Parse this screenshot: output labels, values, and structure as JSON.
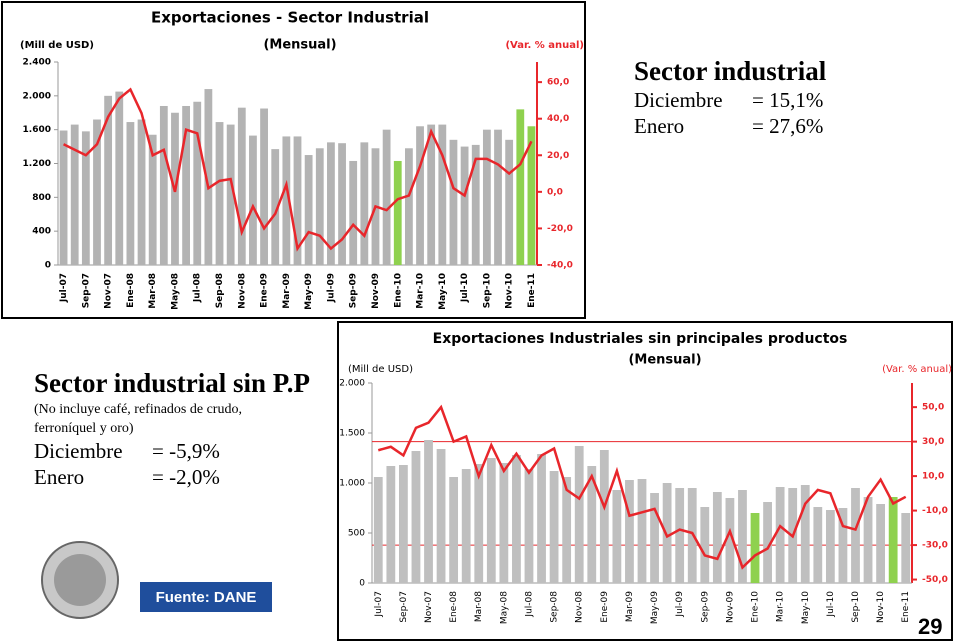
{
  "chart_data": [
    {
      "type": "bar_line",
      "title": "Exportaciones - Sector Industrial",
      "subtitle": "(Mensual)",
      "y_label": "(Mill de USD)",
      "y2_label": "(Var. % anual)",
      "categories": [
        "Jul-07",
        null,
        "Sep-07",
        null,
        "Nov-07",
        null,
        "Ene-08",
        null,
        "Mar-08",
        null,
        "May-08",
        null,
        "Jul-08",
        null,
        "Sep-08",
        null,
        "Nov-08",
        null,
        "Ene-09",
        null,
        "Mar-09",
        null,
        "May-09",
        null,
        "Jul-09",
        null,
        "Sep-09",
        null,
        "Nov-09",
        null,
        "Ene-10",
        null,
        "Mar-10",
        null,
        "May-10",
        null,
        "Jul-10",
        null,
        "Sep-10",
        null,
        "Nov-10",
        null,
        "Ene-11"
      ],
      "series": [
        {
          "values": [
            1590,
            1660,
            1580,
            1720,
            2000,
            2050,
            1690,
            1720,
            1540,
            1880,
            1800,
            1880,
            1930,
            2080,
            1690,
            1660,
            1860,
            1530,
            1850,
            1370,
            1520,
            1520,
            1300,
            1380,
            1450,
            1440,
            1230,
            1450,
            1380,
            1600,
            1230,
            1380,
            1640,
            1660,
            1660,
            1480,
            1400,
            1420,
            1600,
            1600,
            1480,
            1840,
            1640
          ],
          "colors": [
            "#b3b3b3",
            "#b3b3b3",
            "#b3b3b3",
            "#b3b3b3",
            "#b3b3b3",
            "#b3b3b3",
            "#b3b3b3",
            "#b3b3b3",
            "#b3b3b3",
            "#b3b3b3",
            "#b3b3b3",
            "#b3b3b3",
            "#b3b3b3",
            "#b3b3b3",
            "#b3b3b3",
            "#b3b3b3",
            "#b3b3b3",
            "#b3b3b3",
            "#b3b3b3",
            "#b3b3b3",
            "#b3b3b3",
            "#b3b3b3",
            "#b3b3b3",
            "#b3b3b3",
            "#b3b3b3",
            "#b3b3b3",
            "#b3b3b3",
            "#b3b3b3",
            "#b3b3b3",
            "#b3b3b3",
            "#8fd14f",
            "#b3b3b3",
            "#b3b3b3",
            "#b3b3b3",
            "#b3b3b3",
            "#b3b3b3",
            "#b3b3b3",
            "#b3b3b3",
            "#b3b3b3",
            "#b3b3b3",
            "#b3b3b3",
            "#8fd14f",
            "#8fd14f"
          ]
        },
        {
          "axis": "y2",
          "color": "#e8262b",
          "values": [
            26,
            23,
            20,
            26,
            41,
            51,
            56,
            43,
            20,
            23,
            0,
            34,
            32,
            2,
            6,
            7,
            -22,
            -8,
            -20,
            -12,
            4,
            -31,
            -22,
            -24,
            -31,
            -26,
            -18,
            -24,
            -8,
            -10,
            -4,
            -2,
            14,
            33,
            20,
            2,
            -2,
            18,
            18,
            15,
            10,
            15.1,
            27.6
          ]
        }
      ],
      "ylim": [
        0,
        2400
      ],
      "yticks": [
        0,
        400,
        800,
        {
          "value": 1200,
          "label": "1.200"
        },
        {
          "value": 1600,
          "label": "1.600"
        },
        {
          "value": 2000,
          "label": "2.000"
        },
        {
          "value": 2400,
          "label": "2.400"
        }
      ],
      "y2lim": [
        -40,
        71
      ],
      "y2ticks": [
        {
          "value": -40,
          "label": "-40,0"
        },
        {
          "value": -20,
          "label": "-20,0"
        },
        {
          "value": 0,
          "label": "0,0"
        },
        {
          "value": 20,
          "label": "20,0"
        },
        {
          "value": 40,
          "label": "40,0"
        },
        {
          "value": 60,
          "label": "60,0"
        }
      ],
      "y2_color": "#e8262b",
      "grid": false
    },
    {
      "type": "bar_line",
      "title": "Exportaciones Industriales sin principales productos",
      "subtitle": "(Mensual)",
      "y_label": "(Mill de USD)",
      "y2_label": "(Var. % anual)",
      "categories": [
        "Jul-07",
        null,
        "Sep-07",
        null,
        "Nov-07",
        null,
        "Ene-08",
        null,
        "Mar-08",
        null,
        "May-08",
        null,
        "Jul-08",
        null,
        "Sep-08",
        null,
        "Nov-08",
        null,
        "Ene-09",
        null,
        "Mar-09",
        null,
        "May-09",
        null,
        "Jul-09",
        null,
        "Sep-09",
        null,
        "Nov-09",
        null,
        "Ene-10",
        null,
        "Mar-10",
        null,
        "May-10",
        null,
        "Jul-10",
        null,
        "Sep-10",
        null,
        "Nov-10",
        null,
        "Ene-11"
      ],
      "series": [
        {
          "values": [
            1060,
            1170,
            1180,
            1320,
            1430,
            1340,
            1060,
            1140,
            1190,
            1250,
            1200,
            1280,
            1140,
            1290,
            1120,
            1060,
            1370,
            1170,
            1330,
            930,
            1030,
            1040,
            900,
            1000,
            950,
            950,
            760,
            910,
            850,
            930,
            700,
            810,
            960,
            950,
            980,
            760,
            730,
            750,
            950,
            860,
            790,
            860,
            700
          ],
          "colors": [
            "#bfbfbf",
            "#bfbfbf",
            "#bfbfbf",
            "#bfbfbf",
            "#bfbfbf",
            "#bfbfbf",
            "#bfbfbf",
            "#bfbfbf",
            "#bfbfbf",
            "#bfbfbf",
            "#bfbfbf",
            "#bfbfbf",
            "#bfbfbf",
            "#bfbfbf",
            "#bfbfbf",
            "#bfbfbf",
            "#bfbfbf",
            "#bfbfbf",
            "#bfbfbf",
            "#bfbfbf",
            "#bfbfbf",
            "#bfbfbf",
            "#bfbfbf",
            "#bfbfbf",
            "#bfbfbf",
            "#bfbfbf",
            "#bfbfbf",
            "#bfbfbf",
            "#bfbfbf",
            "#bfbfbf",
            "#8fd14f",
            "#bfbfbf",
            "#bfbfbf",
            "#bfbfbf",
            "#bfbfbf",
            "#bfbfbf",
            "#bfbfbf",
            "#bfbfbf",
            "#bfbfbf",
            "#bfbfbf",
            "#bfbfbf",
            "#8fd14f",
            "#bfbfbf"
          ]
        },
        {
          "axis": "y2",
          "color": "#e8262b",
          "values": [
            25,
            27,
            22,
            38,
            41,
            50,
            30,
            33,
            10,
            28,
            13,
            23,
            12,
            22,
            26,
            2,
            -3,
            10,
            -8,
            13,
            -13,
            -11,
            -9,
            -25,
            -21,
            -23,
            -36,
            -38,
            -22,
            -43,
            -36,
            -32,
            -19,
            -25,
            -6,
            2,
            0,
            -19,
            -21,
            -2,
            8,
            -5.9,
            -2.0
          ]
        }
      ],
      "ylim": [
        0,
        2000
      ],
      "yticks": [
        0,
        500,
        {
          "value": 1000,
          "label": "1.000"
        },
        {
          "value": 1500,
          "label": "1.500"
        },
        {
          "value": 2000,
          "label": "2.000"
        }
      ],
      "y2lim": [
        -52,
        64
      ],
      "y2ticks": [
        {
          "value": -50,
          "label": "-50,0"
        },
        {
          "value": -30,
          "label": "-30,0"
        },
        {
          "value": -10,
          "label": "-10,0"
        },
        {
          "value": 10,
          "label": "10,0"
        },
        {
          "value": 30,
          "label": "30,0"
        },
        {
          "value": 50,
          "label": "50,0"
        }
      ],
      "y2_reference_lines": [
        30,
        -30
      ],
      "y2_color": "#e8262b",
      "grid": false
    }
  ],
  "summary_top": {
    "title": "Sector industrial",
    "rows": [
      [
        "Diciembre",
        "= 15,1%"
      ],
      [
        "Enero",
        "= 27,6%"
      ]
    ]
  },
  "summary_bottom": {
    "title": "Sector industrial sin P.P",
    "note": "(No incluye café, refinados de crudo, ferroníquel  y oro)",
    "rows": [
      [
        "Diciembre",
        "= -5,9%"
      ],
      [
        "Enero",
        "= -2,0%"
      ]
    ]
  },
  "source": "Fuente: DANE",
  "page_number": "29"
}
